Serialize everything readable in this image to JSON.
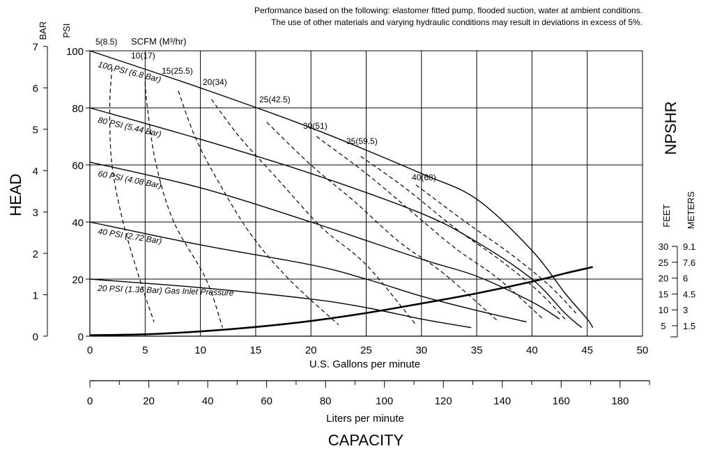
{
  "notes": {
    "line1": "Performance based on the following: elastomer fitted pump, flooded suction, water at ambient conditions.",
    "line2": "The use of other materials and varying hydraulic conditions may result in deviations in excess of 5%."
  },
  "chart_data": {
    "type": "line",
    "xlabel": "U.S. Gallons per minute",
    "x2label": "Liters per minute",
    "capacity_label": "CAPACITY",
    "ylabel": "HEAD",
    "y_units": {
      "bar": "BAR",
      "psi": "PSI"
    },
    "xlim": [
      0,
      50
    ],
    "ylim_psi": [
      0,
      100
    ],
    "x_ticks_gpm": [
      0,
      5,
      10,
      15,
      20,
      25,
      30,
      35,
      40,
      45,
      50
    ],
    "x_ticks_lpm": [
      0,
      20,
      40,
      60,
      80,
      100,
      120,
      140,
      160,
      180
    ],
    "y_ticks_psi": [
      0,
      20,
      40,
      60,
      80,
      100
    ],
    "y_ticks_bar": [
      0,
      1,
      2,
      3,
      4,
      5,
      6,
      7
    ],
    "grid": true,
    "scfm_title": "SCFM (M³/hr)",
    "npshr": {
      "title": "NPSHR",
      "feet_label": "FEET",
      "meters_label": "METERS",
      "feet_ticks": [
        5,
        10,
        15,
        20,
        25,
        30
      ],
      "meters_ticks": [
        "1.5",
        "3",
        "4.5",
        "6",
        "7.6",
        "9.1"
      ],
      "curve": [
        [
          0,
          2.0
        ],
        [
          5,
          2.3
        ],
        [
          10,
          3.2
        ],
        [
          15,
          4.6
        ],
        [
          20,
          6.5
        ],
        [
          25,
          9.0
        ],
        [
          30,
          12.0
        ],
        [
          35,
          15.2
        ],
        [
          40,
          18.9
        ],
        [
          43,
          21.5
        ],
        [
          45.5,
          23.5
        ]
      ]
    },
    "pressure_series": [
      {
        "name": "100 PSI (6.8 Bar)",
        "points": [
          [
            0,
            100
          ],
          [
            10,
            87
          ],
          [
            20,
            73
          ],
          [
            30,
            57
          ],
          [
            35,
            48
          ],
          [
            40,
            30
          ],
          [
            43,
            15
          ],
          [
            45,
            6
          ],
          [
            45.5,
            3
          ]
        ]
      },
      {
        "name": "80 PSI (5.44 Bar)",
        "points": [
          [
            0,
            80
          ],
          [
            10,
            69
          ],
          [
            20,
            57
          ],
          [
            30,
            43
          ],
          [
            35,
            33
          ],
          [
            40,
            20
          ],
          [
            43,
            8
          ],
          [
            44.5,
            3
          ]
        ]
      },
      {
        "name": "60 PSI (4.08 Bar)",
        "points": [
          [
            0,
            61
          ],
          [
            10,
            52
          ],
          [
            20,
            40
          ],
          [
            30,
            27
          ],
          [
            35,
            21
          ],
          [
            40,
            12
          ],
          [
            42.5,
            6
          ]
        ]
      },
      {
        "name": "40 PSI (2.72 Bar)",
        "points": [
          [
            0,
            40
          ],
          [
            10,
            32
          ],
          [
            20,
            25
          ],
          [
            25,
            20
          ],
          [
            30,
            14
          ],
          [
            35,
            9
          ],
          [
            39.5,
            5
          ]
        ]
      },
      {
        "name": "20 PSI (1.36 Bar) Gas Inlet Pressure",
        "points": [
          [
            0,
            20
          ],
          [
            10,
            17
          ],
          [
            20,
            13
          ],
          [
            25,
            10
          ],
          [
            30,
            6
          ],
          [
            34.5,
            3
          ]
        ]
      }
    ],
    "air_series": [
      {
        "name": "5(8.5)",
        "points": [
          [
            2,
            94
          ],
          [
            1.8,
            80
          ],
          [
            2.0,
            60
          ],
          [
            3.0,
            40
          ],
          [
            4.5,
            20
          ],
          [
            5.8,
            5
          ]
        ]
      },
      {
        "name": "10(17)",
        "points": [
          [
            5,
            89
          ],
          [
            5.2,
            80
          ],
          [
            6.0,
            60
          ],
          [
            7.6,
            40
          ],
          [
            10.5,
            20
          ],
          [
            12.0,
            3
          ]
        ]
      },
      {
        "name": "15(25.5)",
        "points": [
          [
            8,
            86
          ],
          [
            9.5,
            70
          ],
          [
            11.5,
            55
          ],
          [
            14.5,
            36
          ],
          [
            18,
            20
          ],
          [
            22.5,
            4
          ]
        ]
      },
      {
        "name": "20(34)",
        "points": [
          [
            11,
            83
          ],
          [
            13.5,
            70
          ],
          [
            17,
            55
          ],
          [
            21,
            38
          ],
          [
            25,
            25
          ],
          [
            29.5,
            4
          ]
        ]
      },
      {
        "name": "25(42.5)",
        "points": [
          [
            16,
            75
          ],
          [
            20,
            60
          ],
          [
            24,
            47
          ],
          [
            28,
            33
          ],
          [
            32,
            22
          ],
          [
            37,
            5
          ]
        ]
      },
      {
        "name": "30(51)",
        "points": [
          [
            20.5,
            70
          ],
          [
            25,
            57
          ],
          [
            29,
            44
          ],
          [
            33,
            31
          ],
          [
            37,
            20
          ],
          [
            41,
            6
          ]
        ]
      },
      {
        "name": "35(59.5)",
        "points": [
          [
            24.5,
            63
          ],
          [
            28.5,
            52
          ],
          [
            33,
            38
          ],
          [
            37,
            27
          ],
          [
            40.5,
            16
          ],
          [
            43,
            6
          ]
        ]
      },
      {
        "name": "40(68)",
        "points": [
          [
            29.5,
            53
          ],
          [
            34,
            40
          ],
          [
            38,
            29
          ],
          [
            41.5,
            18
          ],
          [
            44,
            8
          ]
        ]
      }
    ]
  }
}
